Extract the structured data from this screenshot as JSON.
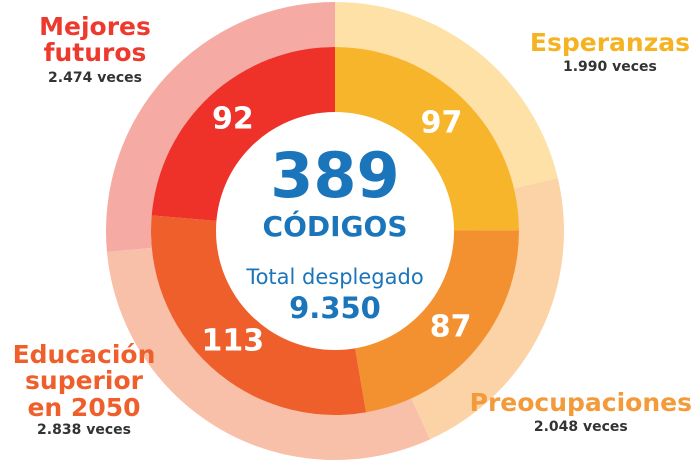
{
  "chart_data": {
    "type": "nested-donut",
    "categories": [
      "Esperanzas",
      "Preocupaciones",
      "Educación superior en 2050",
      "Mejores futuros"
    ],
    "label_colors": [
      "#f5b324",
      "#f39a3a",
      "#ef5f2b",
      "#ee3a2e"
    ],
    "series": [
      {
        "values": [
          97,
          87,
          113,
          92
        ],
        "colors": [
          "#f7b52c",
          "#f39130",
          "#ef5f2b",
          "#ee3129"
        ]
      },
      {
        "values": [
          1990,
          2048,
          2838,
          2474
        ],
        "value_labels": [
          "1.990 veces",
          "2.048 veces",
          "2.838 veces",
          "2.474 veces"
        ],
        "colors": [
          "#fde1a6",
          "#fbd3a6",
          "#f8c0a8",
          "#f5aaa4"
        ]
      }
    ],
    "total_codes": 389,
    "codes_label": "CÓDIGOS",
    "total_label": "Total desplegado",
    "total_count": {
      "value": 9350,
      "label": "9.350"
    }
  }
}
